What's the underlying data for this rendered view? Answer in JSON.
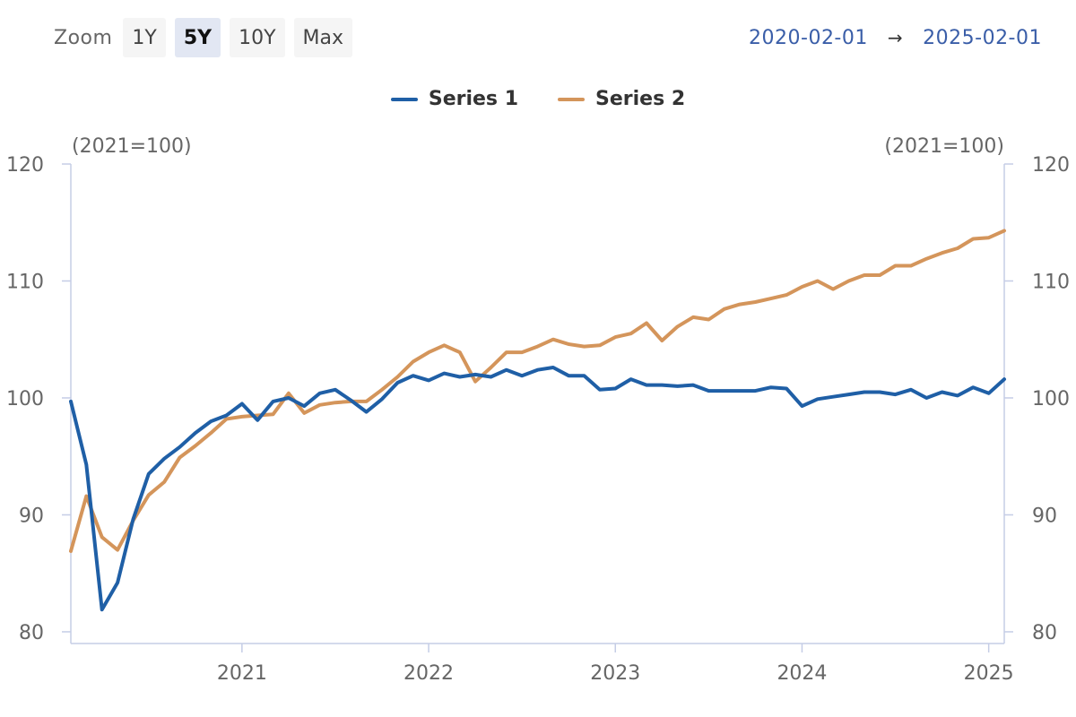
{
  "toolbar": {
    "zoom_label": "Zoom",
    "buttons": [
      {
        "label": "1Y",
        "active": false
      },
      {
        "label": "5Y",
        "active": true
      },
      {
        "label": "10Y",
        "active": false
      },
      {
        "label": "Max",
        "active": false
      }
    ]
  },
  "range": {
    "start": "2020-02-01",
    "arrow": "→",
    "end": "2025-02-01"
  },
  "colors": {
    "series1": "#1f5fa6",
    "series2": "#d4955b",
    "axis": "#c5cde6",
    "tick_text": "#666666"
  },
  "chart_data": {
    "type": "line",
    "left_axis_unit": "(2021=100)",
    "right_axis_unit": "(2021=100)",
    "ylim": [
      79,
      120
    ],
    "yticks": [
      80,
      90,
      100,
      110,
      120
    ],
    "xticks": [
      "2021",
      "2022",
      "2023",
      "2024",
      "2025"
    ],
    "x_start": "2020-02",
    "grid": false,
    "legend_position": "top-center",
    "series": [
      {
        "name": "Series 1",
        "values": [
          99.7,
          94.3,
          81.9,
          84.2,
          89.6,
          93.5,
          94.8,
          95.8,
          97.0,
          98.0,
          98.5,
          99.5,
          98.1,
          99.7,
          100.0,
          99.3,
          100.4,
          100.7,
          99.8,
          98.8,
          99.9,
          101.3,
          101.9,
          101.5,
          102.1,
          101.8,
          102.0,
          101.8,
          102.4,
          101.9,
          102.4,
          102.6,
          101.9,
          101.9,
          100.7,
          100.8,
          101.6,
          101.1,
          101.1,
          101.0,
          101.1,
          100.6,
          100.6,
          100.6,
          100.6,
          100.9,
          100.8,
          99.3,
          99.9,
          100.1,
          100.3,
          100.5,
          100.5,
          100.3,
          100.7,
          100.0,
          100.5,
          100.2,
          100.9,
          100.4,
          101.6
        ]
      },
      {
        "name": "Series 2",
        "values": [
          86.9,
          91.6,
          88.1,
          87.0,
          89.5,
          91.7,
          92.8,
          94.9,
          95.9,
          97.0,
          98.2,
          98.4,
          98.5,
          98.6,
          100.4,
          98.7,
          99.4,
          99.6,
          99.7,
          99.7,
          100.7,
          101.8,
          103.1,
          103.9,
          104.5,
          103.9,
          101.4,
          102.6,
          103.9,
          103.9,
          104.4,
          105.0,
          104.6,
          104.4,
          104.5,
          105.2,
          105.5,
          106.4,
          104.9,
          106.1,
          106.9,
          106.7,
          107.6,
          108.0,
          108.2,
          108.5,
          108.8,
          109.5,
          110.0,
          109.3,
          110.0,
          110.5,
          110.5,
          111.3,
          111.3,
          111.9,
          112.4,
          112.8,
          113.6,
          113.7,
          114.3
        ]
      }
    ]
  }
}
